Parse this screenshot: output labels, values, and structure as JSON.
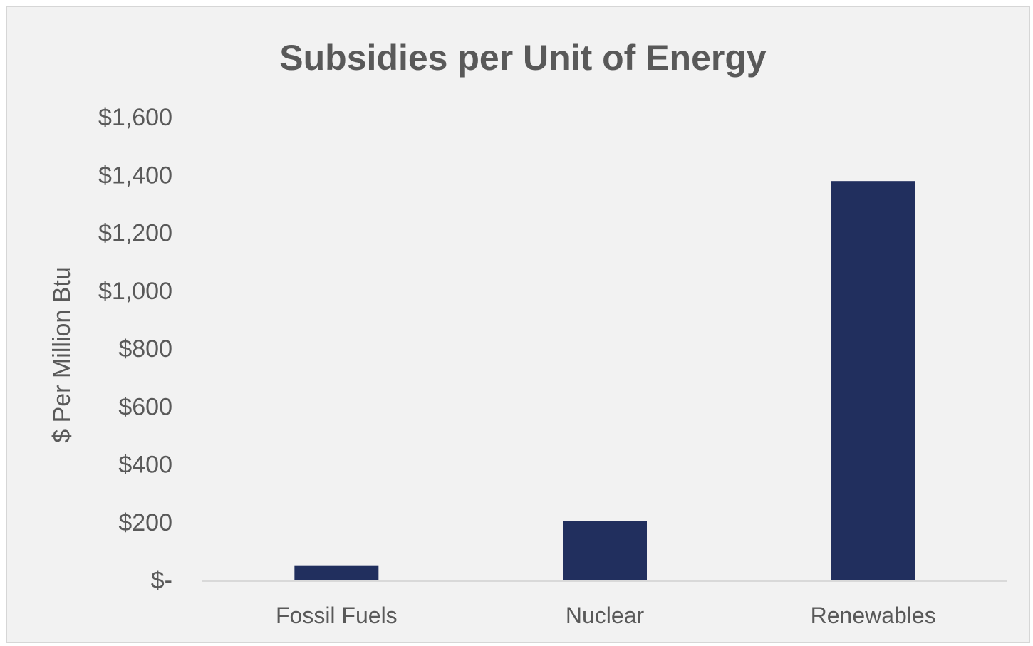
{
  "chart_data": {
    "type": "bar",
    "title": "Subsidies per Unit of Energy",
    "xlabel": "",
    "ylabel": "$ Per Million Btu",
    "categories": [
      "Fossil Fuels",
      "Nuclear",
      "Renewables"
    ],
    "values": [
      50,
      203,
      1378
    ],
    "ylim": [
      0,
      1600
    ],
    "yticks": [
      0,
      200,
      400,
      600,
      800,
      1000,
      1200,
      1400,
      1600
    ],
    "ytick_labels": [
      "$-",
      "$200",
      "$400",
      "$600",
      "$800",
      "$1,000",
      "$1,200",
      "$1,400",
      "$1,600"
    ],
    "grid": false,
    "legend": "none",
    "bar_color": "#212f5e",
    "axis_color": "#d9d9d9",
    "text_color": "#595959",
    "background_color": "#f2f2f2"
  }
}
